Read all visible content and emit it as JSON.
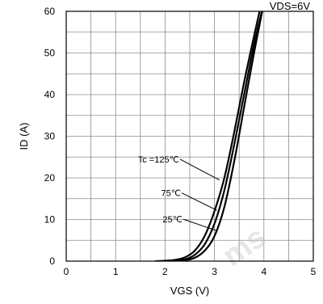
{
  "chart_data": {
    "type": "line",
    "title": "VDS=6V",
    "xlabel": "VGS (V)",
    "ylabel": "ID (A)",
    "xlim": [
      0,
      5
    ],
    "ylim": [
      0,
      60
    ],
    "x_ticks": [
      0,
      1,
      2,
      3,
      4,
      5
    ],
    "y_ticks": [
      0,
      10,
      20,
      30,
      40,
      50,
      60
    ],
    "grid": true,
    "grid_x_step": 0.5,
    "grid_y_step": 5,
    "legend": "none",
    "series": [
      {
        "name": "Tc =125℃",
        "x": [
          1.8,
          2.0,
          2.2,
          2.4,
          2.6,
          2.8,
          3.0,
          3.2,
          3.4,
          3.6,
          3.8,
          3.95
        ],
        "y": [
          0.0,
          0.1,
          0.3,
          0.9,
          2.5,
          6.0,
          12.0,
          20.0,
          31.0,
          43.0,
          54.0,
          62.0
        ]
      },
      {
        "name": "75℃",
        "x": [
          2.0,
          2.2,
          2.4,
          2.6,
          2.8,
          3.0,
          3.2,
          3.4,
          3.6,
          3.8,
          4.0
        ],
        "y": [
          0.0,
          0.1,
          0.4,
          1.5,
          4.0,
          9.0,
          17.0,
          28.0,
          40.0,
          52.0,
          62.0
        ]
      },
      {
        "name": "25℃",
        "x": [
          2.2,
          2.4,
          2.6,
          2.8,
          3.0,
          3.2,
          3.4,
          3.6,
          3.8,
          4.0
        ],
        "y": [
          0.0,
          0.2,
          0.8,
          2.5,
          6.0,
          13.0,
          24.0,
          37.0,
          50.0,
          62.0
        ]
      }
    ],
    "annotations": [
      {
        "text": "Tc =125℃",
        "series": "Tc =125℃"
      },
      {
        "text": "75℃",
        "series": "75℃"
      },
      {
        "text": "25℃",
        "series": "25℃"
      }
    ]
  },
  "header_text": "VDS=6V",
  "watermark": "ms"
}
